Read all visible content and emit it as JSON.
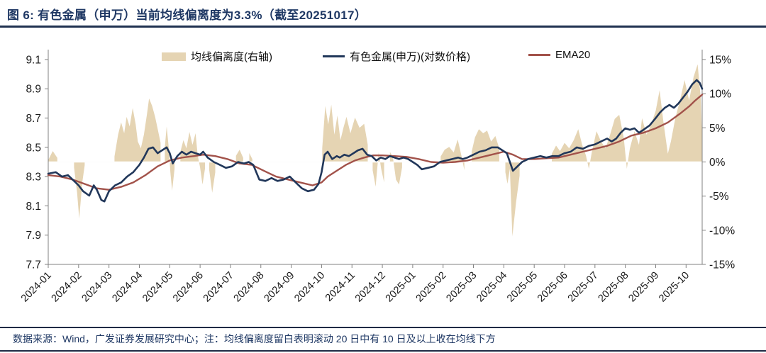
{
  "page": {
    "title": "图 6: 有色金属（申万）当前均线偏离度为3.3%（截至20251017）",
    "footer": "数据来源：Wind，广发证券发展研究中心；注：均线偏离度留白表明滚动 20 日中有 10 日及以上收在均线下方"
  },
  "chart_data": {
    "type": "line+area",
    "title": "有色金属（申万）当前均线偏离度为3.3%（截至20251017）",
    "legend": [
      {
        "label": "均线偏离度(右轴)",
        "marker": "area"
      },
      {
        "label": "有色金属(申万)(对数价格)",
        "marker": "line-navy"
      },
      {
        "label": "EMA20",
        "marker": "line-red"
      }
    ],
    "colors": {
      "deviation": "#e5d4b3",
      "price": "#21375a",
      "ema": "#a2524a",
      "axis": "#808080",
      "tick_label": "#1a1a1a",
      "title": "#1f3864",
      "zero_line": "#ffffff"
    },
    "left_axis": {
      "min": 7.7,
      "max": 9.1,
      "ticks": [
        9.1,
        8.9,
        8.7,
        8.5,
        8.3,
        8.1,
        7.9,
        7.7
      ]
    },
    "right_axis": {
      "min": -15,
      "max": 15,
      "ticks": [
        15,
        10,
        5,
        0,
        -5,
        -10,
        -15
      ],
      "suffix": "%"
    },
    "x_ticks": [
      "2024-01",
      "2024-02",
      "2024-03",
      "2024-04",
      "2024-05",
      "2024-06",
      "2024-07",
      "2024-08",
      "2024-09",
      "2024-10",
      "2024-11",
      "2024-12",
      "2025-01",
      "2025-02",
      "2025-03",
      "2025-04",
      "2025-05",
      "2025-06",
      "2025-07",
      "2025-08",
      "2025-09",
      "2025-10"
    ],
    "x_max": 21.53,
    "series": {
      "price": {
        "name": "有色金属(申万)(对数价格)",
        "axis": "left",
        "x": [
          0,
          0.25,
          0.45,
          0.65,
          0.85,
          1.0,
          1.15,
          1.35,
          1.5,
          1.6,
          1.75,
          1.85,
          2.0,
          2.2,
          2.4,
          2.6,
          2.8,
          3.0,
          3.15,
          3.3,
          3.45,
          3.6,
          3.75,
          3.9,
          4.0,
          4.1,
          4.25,
          4.4,
          4.55,
          4.7,
          4.85,
          5.0,
          5.1,
          5.25,
          5.45,
          5.65,
          5.85,
          6.05,
          6.25,
          6.45,
          6.6,
          6.75,
          6.85,
          6.95,
          7.15,
          7.35,
          7.55,
          7.75,
          7.95,
          8.15,
          8.35,
          8.55,
          8.75,
          8.9,
          9.0,
          9.1,
          9.2,
          9.35,
          9.5,
          9.6,
          9.75,
          9.9,
          10.05,
          10.2,
          10.35,
          10.5,
          10.65,
          10.8,
          10.95,
          11.1,
          11.25,
          11.4,
          11.55,
          11.7,
          11.85,
          12.0,
          12.15,
          12.3,
          12.5,
          12.7,
          12.9,
          13.1,
          13.3,
          13.5,
          13.65,
          13.8,
          14.0,
          14.2,
          14.4,
          14.6,
          14.8,
          14.95,
          15.1,
          15.3,
          15.45,
          15.6,
          15.8,
          16.0,
          16.2,
          16.4,
          16.6,
          16.8,
          17.0,
          17.2,
          17.4,
          17.6,
          17.8,
          18.0,
          18.2,
          18.4,
          18.55,
          18.7,
          18.85,
          19.0,
          19.15,
          19.3,
          19.45,
          19.6,
          19.8,
          20.0,
          20.15,
          20.3,
          20.45,
          20.6,
          20.75,
          20.9,
          21.05,
          21.2,
          21.35,
          21.45,
          21.53
        ],
        "values": [
          8.32,
          8.33,
          8.3,
          8.31,
          8.27,
          8.24,
          8.2,
          8.17,
          8.24,
          8.21,
          8.14,
          8.13,
          8.2,
          8.24,
          8.26,
          8.3,
          8.33,
          8.38,
          8.43,
          8.49,
          8.5,
          8.46,
          8.48,
          8.5,
          8.46,
          8.39,
          8.44,
          8.47,
          8.45,
          8.47,
          8.46,
          8.45,
          8.47,
          8.43,
          8.4,
          8.38,
          8.36,
          8.37,
          8.4,
          8.39,
          8.4,
          8.38,
          8.33,
          8.28,
          8.27,
          8.29,
          8.27,
          8.28,
          8.3,
          8.26,
          8.22,
          8.2,
          8.21,
          8.25,
          8.33,
          8.45,
          8.47,
          8.42,
          8.44,
          8.43,
          8.45,
          8.44,
          8.46,
          8.48,
          8.49,
          8.45,
          8.44,
          8.41,
          8.43,
          8.42,
          8.44,
          8.43,
          8.42,
          8.43,
          8.42,
          8.4,
          8.38,
          8.35,
          8.36,
          8.37,
          8.4,
          8.41,
          8.42,
          8.43,
          8.42,
          8.43,
          8.45,
          8.47,
          8.48,
          8.5,
          8.5,
          8.48,
          8.46,
          8.34,
          8.37,
          8.4,
          8.42,
          8.43,
          8.44,
          8.43,
          8.44,
          8.44,
          8.46,
          8.47,
          8.5,
          8.49,
          8.51,
          8.52,
          8.54,
          8.56,
          8.54,
          8.56,
          8.6,
          8.63,
          8.62,
          8.63,
          8.6,
          8.62,
          8.65,
          8.7,
          8.74,
          8.77,
          8.79,
          8.77,
          8.8,
          8.84,
          8.88,
          8.93,
          8.96,
          8.94,
          8.9
        ]
      },
      "ema20": {
        "name": "EMA20",
        "axis": "left",
        "x": [
          0,
          0.4,
          0.8,
          1.2,
          1.6,
          2.0,
          2.4,
          2.8,
          3.2,
          3.6,
          4.0,
          4.4,
          4.8,
          5.1,
          5.5,
          5.9,
          6.3,
          6.7,
          7.1,
          7.5,
          7.9,
          8.3,
          8.7,
          9.0,
          9.2,
          9.5,
          9.8,
          10.1,
          10.4,
          10.7,
          11.0,
          11.4,
          11.8,
          12.2,
          12.6,
          13.0,
          13.4,
          13.8,
          14.2,
          14.6,
          15.0,
          15.3,
          15.6,
          16.0,
          16.4,
          16.8,
          17.2,
          17.6,
          18.0,
          18.4,
          18.8,
          19.2,
          19.6,
          20.0,
          20.4,
          20.8,
          21.1,
          21.3,
          21.53
        ],
        "values": [
          8.31,
          8.3,
          8.28,
          8.25,
          8.22,
          8.21,
          8.23,
          8.26,
          8.31,
          8.37,
          8.41,
          8.43,
          8.44,
          8.45,
          8.44,
          8.42,
          8.39,
          8.38,
          8.34,
          8.3,
          8.28,
          8.26,
          8.24,
          8.26,
          8.3,
          8.34,
          8.38,
          8.41,
          8.43,
          8.445,
          8.445,
          8.44,
          8.435,
          8.42,
          8.4,
          8.395,
          8.4,
          8.41,
          8.43,
          8.45,
          8.47,
          8.45,
          8.42,
          8.42,
          8.425,
          8.43,
          8.45,
          8.47,
          8.49,
          8.51,
          8.54,
          8.58,
          8.6,
          8.63,
          8.67,
          8.73,
          8.78,
          8.82,
          8.86
        ]
      },
      "deviation": {
        "name": "均线偏离度(右轴)",
        "axis": "right",
        "unit": "%",
        "current_value": 3.3,
        "x": [
          0.0,
          0.15,
          0.3,
          0.42,
          0.78,
          0.85,
          0.95,
          1.02,
          1.12,
          1.2,
          1.28,
          2.1,
          2.18,
          2.3,
          2.4,
          2.5,
          2.58,
          2.68,
          2.78,
          2.88,
          2.95,
          3.05,
          3.15,
          3.25,
          3.32,
          3.42,
          3.52,
          3.62,
          3.7,
          3.78,
          3.84,
          3.9,
          3.97,
          4.02,
          4.08,
          4.16,
          4.22,
          4.35,
          4.45,
          4.55,
          4.65,
          4.75,
          4.85,
          4.92,
          5.0,
          5.08,
          5.16,
          5.22,
          5.3,
          5.4,
          5.5,
          5.58,
          6.1,
          6.18,
          6.3,
          6.42,
          6.5,
          6.62,
          6.72,
          6.8,
          8.95,
          9.02,
          9.12,
          9.22,
          9.32,
          9.42,
          9.52,
          9.62,
          9.72,
          9.82,
          9.95,
          10.1,
          10.25,
          10.4,
          10.52,
          10.6,
          10.68,
          10.78,
          10.88,
          10.96,
          11.06,
          11.14,
          11.25,
          11.35,
          11.45,
          11.55,
          11.65,
          11.72,
          12.85,
          12.92,
          13.05,
          13.2,
          13.35,
          13.48,
          13.6,
          13.7,
          13.8,
          13.94,
          14.05,
          14.18,
          14.32,
          14.45,
          14.58,
          14.72,
          14.85,
          14.95,
          15.05,
          15.12,
          15.2,
          15.28,
          15.4,
          15.52,
          15.6,
          16.5,
          16.58,
          16.72,
          16.85,
          17.0,
          17.15,
          17.3,
          17.45,
          17.58,
          17.7,
          17.8,
          17.9,
          18.05,
          18.2,
          18.35,
          18.5,
          18.65,
          18.8,
          18.95,
          19.05,
          19.15,
          19.3,
          19.45,
          19.55,
          19.7,
          19.85,
          20.0,
          20.13,
          20.25,
          20.4,
          20.5,
          20.65,
          20.8,
          20.95,
          21.1,
          21.25,
          21.38,
          21.48,
          21.53
        ],
        "values": [
          0.3,
          1.6,
          0.6,
          null,
          null,
          -0.8,
          -4.5,
          -8.3,
          -3.0,
          -0.5,
          null,
          null,
          0.8,
          4.0,
          5.8,
          4.2,
          6.6,
          5.2,
          7.9,
          5.5,
          3.0,
          2.0,
          4.0,
          7.0,
          9.3,
          8.2,
          6.6,
          4.5,
          2.8,
          null,
          2.2,
          5.2,
          2.0,
          -1.5,
          -4.2,
          -1.0,
          null,
          1.5,
          3.2,
          2.0,
          4.4,
          2.5,
          4.2,
          1.0,
          -0.8,
          -3.3,
          -1.0,
          null,
          -1.2,
          -4.5,
          -1.5,
          null,
          null,
          0.9,
          1.8,
          0.6,
          null,
          1.3,
          0.4,
          null,
          null,
          2.0,
          8.2,
          5.5,
          8.4,
          4.0,
          6.8,
          3.2,
          5.0,
          6.6,
          4.2,
          6.5,
          5.0,
          5.6,
          2.5,
          null,
          -1.2,
          -3.6,
          1.4,
          -1.0,
          -3.0,
          null,
          1.5,
          0.6,
          -2.6,
          -3.3,
          -0.8,
          null,
          null,
          0.8,
          1.8,
          2.2,
          1.4,
          3.3,
          1.0,
          -1.2,
          null,
          1.5,
          3.6,
          4.8,
          4.2,
          4.6,
          3.0,
          3.8,
          2.0,
          null,
          -1.5,
          -3.2,
          -1.0,
          -10.9,
          -6.0,
          -2.0,
          null,
          null,
          1.2,
          2.4,
          1.6,
          2.8,
          2.0,
          3.2,
          4.8,
          2.5,
          1.0,
          -1.0,
          1.5,
          4.5,
          3.0,
          2.0,
          4.0,
          6.3,
          6.9,
          3.5,
          -1.0,
          2.0,
          4.5,
          2.5,
          6.4,
          4.0,
          5.5,
          7.5,
          10.5,
          6.0,
          1.2,
          3.0,
          6.5,
          9.0,
          12.0,
          9.0,
          12.5,
          14.3,
          9.5,
          3.3
        ]
      }
    }
  }
}
